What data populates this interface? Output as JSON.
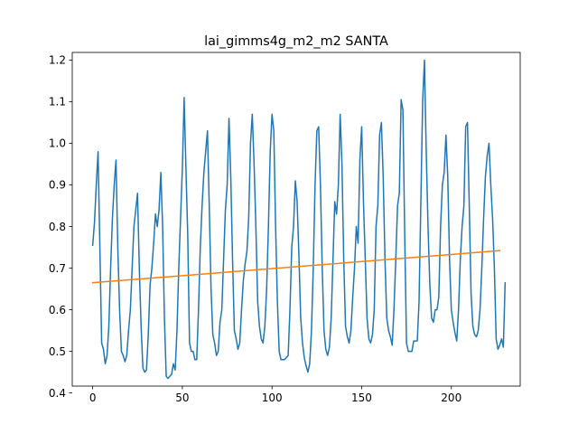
{
  "chart_data": {
    "type": "line",
    "title": "lai_gimms4g_m2_m2 SANTA",
    "xlabel": "",
    "ylabel": "",
    "xlim": [
      -11.4,
      238.4
    ],
    "ylim": [
      0.4165,
      1.2185
    ],
    "x_ticks": [
      0,
      50,
      100,
      150,
      200
    ],
    "y_ticks": [
      0.4,
      0.5,
      0.6,
      0.7,
      0.8,
      0.9,
      1.0,
      1.1,
      1.2
    ],
    "grid": false,
    "legend": "none",
    "series": [
      {
        "color": "#1f77b4",
        "values": [
          0.755,
          0.81,
          0.9,
          0.98,
          0.75,
          0.52,
          0.505,
          0.47,
          0.49,
          0.56,
          0.7,
          0.82,
          0.9,
          0.96,
          0.75,
          0.6,
          0.5,
          0.49,
          0.475,
          0.49,
          0.55,
          0.6,
          0.7,
          0.8,
          0.84,
          0.88,
          0.7,
          0.56,
          0.46,
          0.45,
          0.455,
          0.54,
          0.66,
          0.7,
          0.76,
          0.83,
          0.8,
          0.84,
          0.93,
          0.8,
          0.58,
          0.44,
          0.435,
          0.44,
          0.445,
          0.47,
          0.455,
          0.55,
          0.7,
          0.82,
          0.94,
          1.11,
          0.94,
          0.78,
          0.52,
          0.5,
          0.5,
          0.48,
          0.48,
          0.6,
          0.75,
          0.85,
          0.93,
          0.98,
          1.03,
          0.85,
          0.65,
          0.54,
          0.52,
          0.49,
          0.5,
          0.57,
          0.6,
          0.72,
          0.84,
          0.9,
          1.06,
          0.92,
          0.72,
          0.55,
          0.53,
          0.505,
          0.52,
          0.6,
          0.67,
          0.71,
          0.74,
          0.82,
          1.0,
          1.07,
          0.95,
          0.8,
          0.62,
          0.56,
          0.53,
          0.52,
          0.56,
          0.65,
          0.8,
          0.98,
          1.07,
          1.03,
          0.8,
          0.62,
          0.5,
          0.48,
          0.48,
          0.48,
          0.485,
          0.49,
          0.6,
          0.75,
          0.8,
          0.91,
          0.86,
          0.73,
          0.58,
          0.52,
          0.485,
          0.465,
          0.45,
          0.47,
          0.55,
          0.7,
          0.9,
          1.03,
          1.04,
          0.9,
          0.7,
          0.55,
          0.505,
          0.49,
          0.51,
          0.58,
          0.72,
          0.86,
          0.83,
          0.9,
          1.07,
          0.95,
          0.72,
          0.56,
          0.535,
          0.52,
          0.55,
          0.63,
          0.7,
          0.8,
          0.76,
          0.96,
          1.04,
          0.86,
          0.72,
          0.58,
          0.53,
          0.52,
          0.54,
          0.6,
          0.8,
          0.85,
          1.02,
          1.05,
          0.92,
          0.72,
          0.58,
          0.55,
          0.535,
          0.515,
          0.6,
          0.72,
          0.85,
          0.88,
          1.105,
          1.08,
          0.78,
          0.52,
          0.5,
          0.5,
          0.5,
          0.525,
          0.525,
          0.525,
          0.62,
          0.86,
          1.1,
          1.2,
          0.98,
          0.8,
          0.66,
          0.58,
          0.57,
          0.6,
          0.6,
          0.63,
          0.8,
          0.9,
          0.93,
          1.02,
          0.92,
          0.72,
          0.6,
          0.57,
          0.545,
          0.525,
          0.6,
          0.72,
          0.8,
          0.85,
          1.04,
          1.05,
          0.85,
          0.64,
          0.56,
          0.54,
          0.535,
          0.55,
          0.6,
          0.7,
          0.82,
          0.92,
          0.97,
          1.0,
          0.9,
          0.82,
          0.7,
          0.53,
          0.505,
          0.515,
          0.53,
          0.51,
          0.665
        ]
      },
      {
        "color": "#ff7f0e",
        "x": [
          0,
          227
        ],
        "values": [
          0.665,
          0.742
        ]
      }
    ]
  }
}
